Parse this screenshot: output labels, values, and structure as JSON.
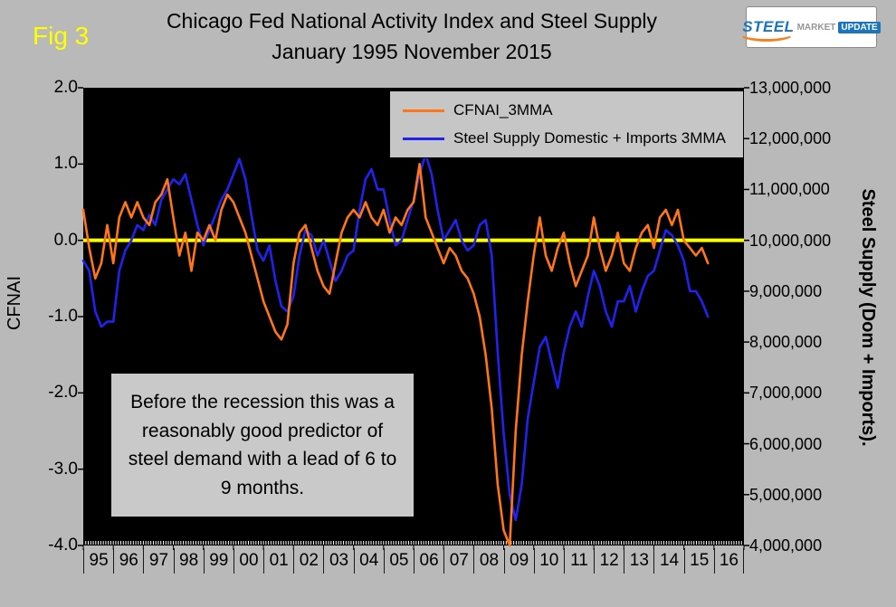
{
  "figure": {
    "fig_label": "Fig 3"
  },
  "logo": {
    "steel": "STEEL",
    "market": "MARKET",
    "update": "UPDATE"
  },
  "annotation": {
    "text": "Before the recession this was a reasonably good predictor of steel demand with a lead of 6 to 9 months."
  },
  "chart_data": {
    "type": "line",
    "title": "Chicago Fed National Activity Index and Steel Supply",
    "subtitle": "January 1995 November 2015",
    "plot_background": "#000000",
    "grid": false,
    "x_axis": {
      "start_year": 1995,
      "end_year": 2017,
      "year_labels": [
        "95",
        "96",
        "97",
        "98",
        "99",
        "00",
        "01",
        "02",
        "03",
        "04",
        "05",
        "06",
        "07",
        "08",
        "09",
        "10",
        "11",
        "12",
        "13",
        "14",
        "15",
        "16"
      ]
    },
    "y_left": {
      "label": "CFNAI",
      "min": -4.0,
      "max": 2.0,
      "tick_labels": [
        "2.0",
        "1.0",
        "0.0",
        "-1.0",
        "-2.0",
        "-3.0",
        "-4.0"
      ]
    },
    "y_right": {
      "label": "Steel Supply (Dom + Imports).",
      "min": 4000000,
      "max": 13000000,
      "tick_labels": [
        "13,000,000",
        "12,000,000",
        "11,000,000",
        "10,000,000",
        "9,000,000",
        "8,000,000",
        "7,000,000",
        "6,000,000",
        "5,000,000",
        "4,000,000"
      ]
    },
    "zero_line": {
      "value": 0.0,
      "color": "#ffff00"
    },
    "legend": {
      "position": "top-inside",
      "entries": [
        {
          "name": "CFNAI_3MMA",
          "color": "#ff7518"
        },
        {
          "name": "Steel Supply Domestic + Imports 3MMA",
          "color": "#2222ee"
        }
      ]
    },
    "sampling": {
      "x_start": 1995.0,
      "x_step": 0.2
    },
    "series": [
      {
        "name": "CFNAI_3MMA",
        "axis": "left",
        "color": "#ff7518",
        "values": [
          0.4,
          -0.1,
          -0.5,
          -0.3,
          0.2,
          -0.3,
          0.3,
          0.5,
          0.3,
          0.5,
          0.3,
          0.2,
          0.5,
          0.6,
          0.8,
          0.3,
          -0.2,
          0.1,
          -0.4,
          0.1,
          0.0,
          0.2,
          0.0,
          0.4,
          0.6,
          0.5,
          0.3,
          0.1,
          -0.2,
          -0.5,
          -0.8,
          -1.0,
          -1.2,
          -1.3,
          -1.1,
          -0.3,
          0.1,
          0.2,
          -0.1,
          -0.4,
          -0.6,
          -0.7,
          -0.3,
          0.1,
          0.3,
          0.4,
          0.3,
          0.5,
          0.3,
          0.2,
          0.4,
          0.1,
          0.3,
          0.2,
          0.4,
          0.5,
          1.0,
          0.3,
          0.1,
          -0.1,
          -0.3,
          -0.1,
          -0.2,
          -0.4,
          -0.5,
          -0.7,
          -1.0,
          -1.5,
          -2.2,
          -3.2,
          -3.8,
          -4.0,
          -2.5,
          -1.5,
          -0.8,
          -0.2,
          0.3,
          -0.2,
          -0.4,
          -0.1,
          0.1,
          -0.3,
          -0.6,
          -0.4,
          -0.2,
          0.3,
          -0.1,
          -0.4,
          -0.2,
          0.1,
          -0.3,
          -0.4,
          -0.1,
          0.1,
          0.2,
          -0.1,
          0.3,
          0.4,
          0.2,
          0.4,
          0.0,
          -0.1,
          -0.2,
          -0.1,
          -0.3
        ]
      },
      {
        "name": "Steel Supply Domestic + Imports 3MMA",
        "axis": "right",
        "color": "#2222ee",
        "value_scale": 1000000,
        "values": [
          9.6,
          9.4,
          8.6,
          8.3,
          8.4,
          8.4,
          9.4,
          9.8,
          10.0,
          10.3,
          10.2,
          10.5,
          10.3,
          10.8,
          11.0,
          11.2,
          11.1,
          11.3,
          10.8,
          10.3,
          9.9,
          10.2,
          10.5,
          10.8,
          11.0,
          11.3,
          11.6,
          11.2,
          10.5,
          9.8,
          9.6,
          9.9,
          9.2,
          8.7,
          8.6,
          8.9,
          9.7,
          10.2,
          10.1,
          9.7,
          10.0,
          9.6,
          9.2,
          9.4,
          9.7,
          9.8,
          10.6,
          11.2,
          11.4,
          11.0,
          11.0,
          10.4,
          9.9,
          10.0,
          10.4,
          10.8,
          11.3,
          11.7,
          11.3,
          10.6,
          10.0,
          10.2,
          10.4,
          10.0,
          9.8,
          9.9,
          10.3,
          10.4,
          9.7,
          7.8,
          6.2,
          5.0,
          4.5,
          5.2,
          6.5,
          7.2,
          7.9,
          8.1,
          7.6,
          7.1,
          7.8,
          8.3,
          8.6,
          8.3,
          8.9,
          9.4,
          9.1,
          8.6,
          8.3,
          8.8,
          8.8,
          9.1,
          8.6,
          9.0,
          9.3,
          9.4,
          9.8,
          10.2,
          10.1,
          9.9,
          9.6,
          9.0,
          9.0,
          8.8,
          8.5
        ]
      }
    ]
  }
}
